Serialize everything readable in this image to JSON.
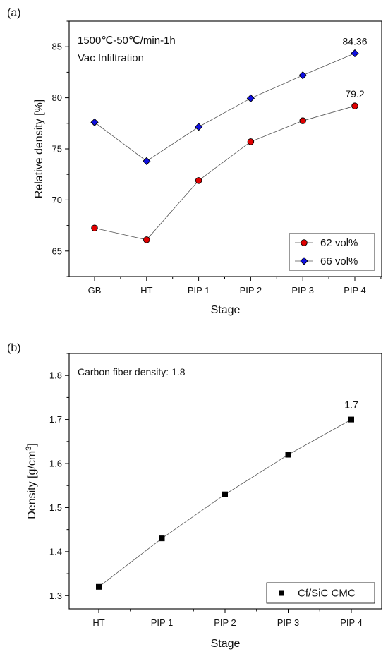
{
  "chart_data": [
    {
      "type": "line",
      "panel_label": "(a)",
      "xlabel": "Stage",
      "ylabel": "Relative density [%]",
      "categories": [
        "GB",
        "HT",
        "PIP 1",
        "PIP 2",
        "PIP 3",
        "PIP 4"
      ],
      "ylim": [
        62.5,
        87.5
      ],
      "yticks": [
        65,
        70,
        75,
        80,
        85
      ],
      "annotations": [
        "1500℃-50℃/min-1h",
        "Vac Infiltration"
      ],
      "legend_position": "bottom-right",
      "series": [
        {
          "name": "62 vol%",
          "marker": "circle",
          "color": "#e00000",
          "values": [
            67.25,
            66.1,
            71.9,
            75.7,
            77.75,
            79.2
          ],
          "end_label": "79.2"
        },
        {
          "name": "66 vol%",
          "marker": "diamond",
          "color": "#1010e0",
          "values": [
            77.6,
            73.8,
            77.15,
            79.95,
            82.2,
            84.36
          ],
          "end_label": "84.36"
        }
      ]
    },
    {
      "type": "line",
      "panel_label": "(b)",
      "xlabel": "Stage",
      "ylabel": "Density [g/cm³]",
      "categories": [
        "HT",
        "PIP 1",
        "PIP 2",
        "PIP 3",
        "PIP 4"
      ],
      "ylim": [
        1.27,
        1.85
      ],
      "yticks": [
        1.3,
        1.4,
        1.5,
        1.6,
        1.7,
        1.8
      ],
      "annotations": [
        "Carbon fiber density: 1.8"
      ],
      "legend_position": "bottom-right",
      "series": [
        {
          "name": "Cf/SiC CMC",
          "marker": "square",
          "color": "#000000",
          "values": [
            1.32,
            1.43,
            1.53,
            1.62,
            1.7
          ],
          "end_label": "1.7"
        }
      ]
    }
  ]
}
